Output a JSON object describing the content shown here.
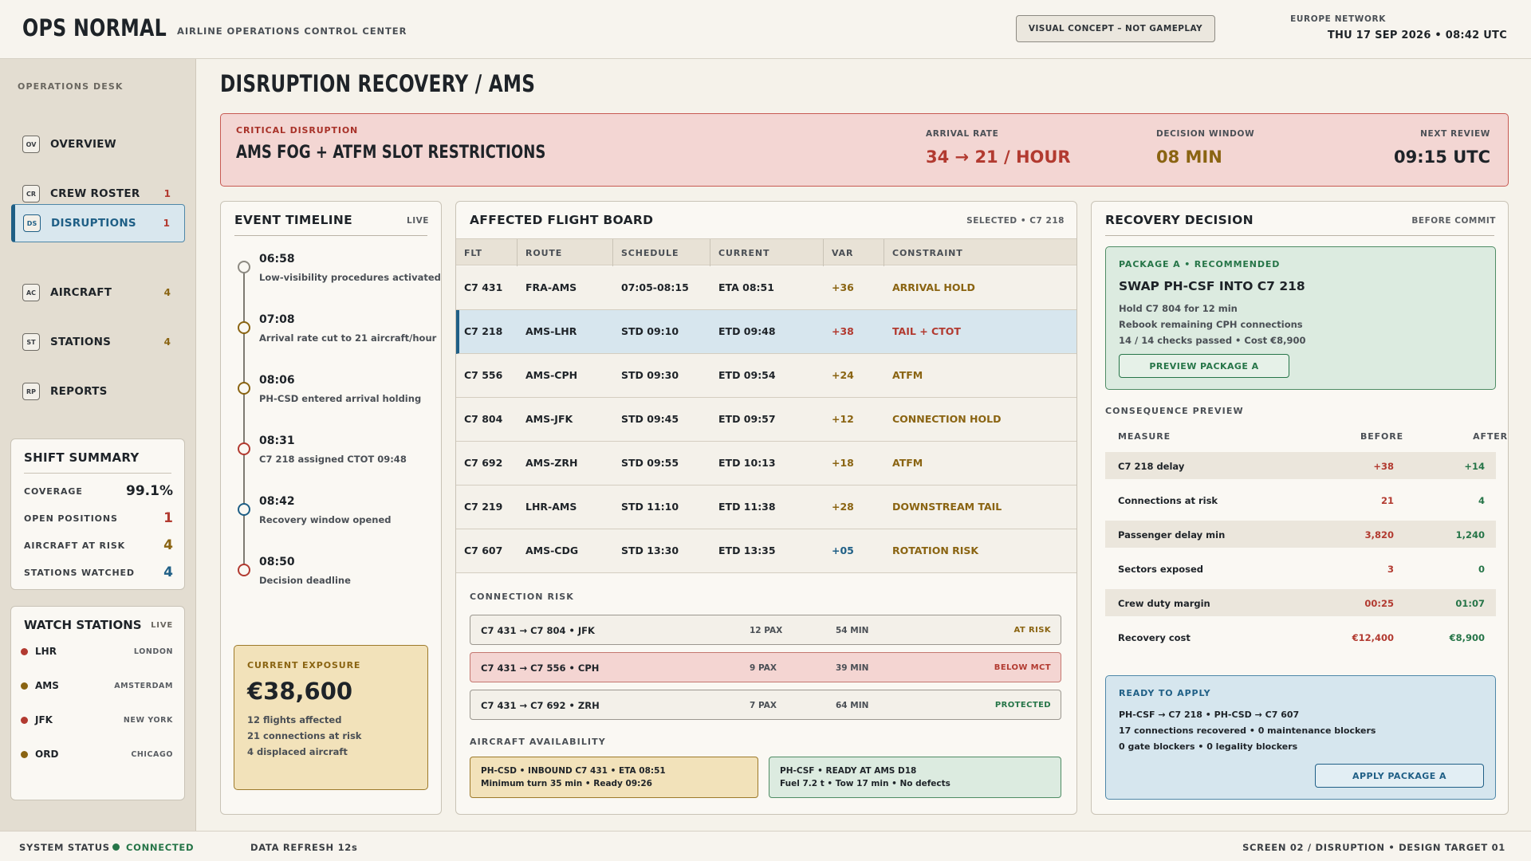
{
  "header": {
    "brand": "OPS NORMAL",
    "subtitle": "AIRLINE OPERATIONS CONTROL CENTER",
    "concept_pill": "VISUAL CONCEPT – NOT GAMEPLAY",
    "network": "EUROPE NETWORK",
    "datetime": "THU 17 SEP 2026  •  08:42 UTC"
  },
  "sidebar": {
    "section": "OPERATIONS DESK",
    "items": [
      {
        "code": "OV",
        "label": "OVERVIEW",
        "count": ""
      },
      {
        "code": "CR",
        "label": "CREW ROSTER",
        "count": "1"
      },
      {
        "code": "DS",
        "label": "DISRUPTIONS",
        "count": "1"
      },
      {
        "code": "AC",
        "label": "AIRCRAFT",
        "count": "4"
      },
      {
        "code": "ST",
        "label": "STATIONS",
        "count": "4"
      },
      {
        "code": "RP",
        "label": "REPORTS",
        "count": ""
      }
    ],
    "shift": {
      "title": "SHIFT SUMMARY",
      "rows": [
        {
          "label": "COVERAGE",
          "value": "99.1%"
        },
        {
          "label": "OPEN POSITIONS",
          "value": "1"
        },
        {
          "label": "AIRCRAFT AT RISK",
          "value": "4"
        },
        {
          "label": "STATIONS WATCHED",
          "value": "4"
        }
      ]
    },
    "watch": {
      "title": "WATCH STATIONS",
      "live": "LIVE",
      "stations": [
        {
          "code": "LHR",
          "city": "LONDON"
        },
        {
          "code": "AMS",
          "city": "AMSTERDAM"
        },
        {
          "code": "JFK",
          "city": "NEW YORK"
        },
        {
          "code": "ORD",
          "city": "CHICAGO"
        }
      ]
    }
  },
  "page_title": "DISRUPTION RECOVERY / AMS",
  "alert": {
    "kicker": "CRITICAL DISRUPTION",
    "title": "AMS FOG + ATFM SLOT RESTRICTIONS",
    "arrival_label": "ARRIVAL RATE",
    "arrival_value": "34 → 21 / HOUR",
    "window_label": "DECISION WINDOW",
    "window_value": "08 MIN",
    "review_label": "NEXT REVIEW",
    "review_value": "09:15 UTC"
  },
  "timeline": {
    "title": "EVENT TIMELINE",
    "tag": "LIVE",
    "events": [
      {
        "time": "06:58",
        "desc": "Low-visibility procedures activated"
      },
      {
        "time": "07:08",
        "desc": "Arrival rate cut to 21 aircraft/hour"
      },
      {
        "time": "08:06",
        "desc": "PH-CSD entered arrival holding"
      },
      {
        "time": "08:31",
        "desc": "C7 218 assigned CTOT 09:48"
      },
      {
        "time": "08:42",
        "desc": "Recovery window opened"
      },
      {
        "time": "08:50",
        "desc": "Decision deadline"
      }
    ],
    "exposure": {
      "label": "CURRENT EXPOSURE",
      "value": "€38,600",
      "lines": [
        "12 flights affected",
        "21 connections at risk",
        "4 displaced aircraft"
      ]
    }
  },
  "board": {
    "title": "AFFECTED FLIGHT BOARD",
    "tag": "SELECTED • C7 218",
    "headers": [
      "FLT",
      "ROUTE",
      "SCHEDULE",
      "CURRENT",
      "VAR",
      "CONSTRAINT"
    ],
    "rows": [
      {
        "flt": "C7 431",
        "route": "FRA-AMS",
        "schedule": "07:05-08:15",
        "current": "ETA 08:51",
        "var": "+36",
        "constraint": "ARRIVAL HOLD"
      },
      {
        "flt": "C7 218",
        "route": "AMS-LHR",
        "schedule": "STD 09:10",
        "current": "ETD 09:48",
        "var": "+38",
        "constraint": "TAIL + CTOT"
      },
      {
        "flt": "C7 556",
        "route": "AMS-CPH",
        "schedule": "STD 09:30",
        "current": "ETD 09:54",
        "var": "+24",
        "constraint": "ATFM"
      },
      {
        "flt": "C7 804",
        "route": "AMS-JFK",
        "schedule": "STD 09:45",
        "current": "ETD 09:57",
        "var": "+12",
        "constraint": "CONNECTION HOLD"
      },
      {
        "flt": "C7 692",
        "route": "AMS-ZRH",
        "schedule": "STD 09:55",
        "current": "ETD 10:13",
        "var": "+18",
        "constraint": "ATFM"
      },
      {
        "flt": "C7 219",
        "route": "LHR-AMS",
        "schedule": "STD 11:10",
        "current": "ETD 11:38",
        "var": "+28",
        "constraint": "DOWNSTREAM TAIL"
      },
      {
        "flt": "C7 607",
        "route": "AMS-CDG",
        "schedule": "STD 13:30",
        "current": "ETD 13:35",
        "var": "+05",
        "constraint": "ROTATION RISK"
      }
    ],
    "connection_head": "CONNECTION RISK",
    "connections": [
      {
        "path": "C7 431 → C7 804 • JFK",
        "pax": "12 PAX",
        "min": "54 MIN",
        "status": "AT RISK"
      },
      {
        "path": "C7 431 → C7 556 • CPH",
        "pax": "9 PAX",
        "min": "39 MIN",
        "status": "BELOW MCT"
      },
      {
        "path": "C7 431 → C7 692 • ZRH",
        "pax": "7 PAX",
        "min": "64 MIN",
        "status": "PROTECTED"
      }
    ],
    "availability_head": "AIRCRAFT AVAILABILITY",
    "availability": [
      {
        "l1": "PH-CSD • INBOUND C7 431 • ETA 08:51",
        "l2": "Minimum turn 35 min • Ready 09:26"
      },
      {
        "l1": "PH-CSF • READY AT AMS D18",
        "l2": "Fuel 7.2 t • Tow 17 min • No defects"
      }
    ]
  },
  "recovery": {
    "title": "RECOVERY DECISION",
    "tag": "BEFORE COMMIT",
    "pkg_kicker": "PACKAGE A • RECOMMENDED",
    "pkg_title": "SWAP PH-CSF INTO C7 218",
    "pkg_lines": [
      "Hold C7 804 for 12 min",
      "Rebook remaining CPH connections",
      "14 / 14 checks passed • Cost €8,900"
    ],
    "preview_btn": "PREVIEW PACKAGE A",
    "cons_head": "CONSEQUENCE PREVIEW",
    "cons_cols": [
      "MEASURE",
      "BEFORE",
      "AFTER"
    ],
    "cons_rows": [
      {
        "measure": "C7 218 delay",
        "before": "+38",
        "after": "+14"
      },
      {
        "measure": "Connections at risk",
        "before": "21",
        "after": "4"
      },
      {
        "measure": "Passenger delay min",
        "before": "3,820",
        "after": "1,240"
      },
      {
        "measure": "Sectors exposed",
        "before": "3",
        "after": "0"
      },
      {
        "measure": "Crew duty margin",
        "before": "00:25",
        "after": "01:07"
      },
      {
        "measure": "Recovery cost",
        "before": "€12,400",
        "after": "€8,900"
      }
    ],
    "ready_kicker": "READY TO APPLY",
    "ready_lines": [
      "PH-CSF → C7 218 • PH-CSD → C7 607",
      "17 connections recovered • 0 maintenance blockers",
      "0 gate blockers • 0 legality blockers"
    ],
    "apply_btn": "APPLY PACKAGE A"
  },
  "footer": {
    "status_label": "SYSTEM STATUS",
    "status": "CONNECTED",
    "refresh": "DATA REFRESH 12s",
    "right": "SCREEN 02 / DISRUPTION  •  DESIGN TARGET 01"
  },
  "colors": {
    "red": "#b23a30",
    "amber": "#8a6412",
    "blue": "#1f5f86",
    "green": "#267548"
  }
}
